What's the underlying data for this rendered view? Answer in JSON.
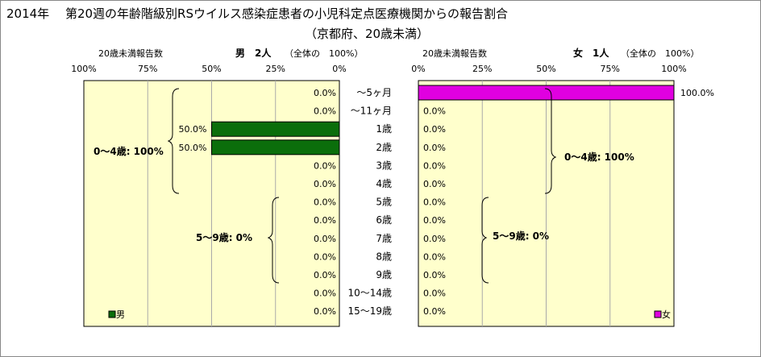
{
  "title": {
    "line1": "2014年　 第20週の年齢階級別RSウイルス感染症患者の小児科定点医療機関からの報告割合",
    "line2": "（京都府、20歳未満）"
  },
  "colors": {
    "male_bar": "#0b6e0b",
    "female_bar": "#e000e0",
    "panel_fill": "#ffffcc",
    "grid": "#aaaaaa"
  },
  "chart_data": [
    {
      "type": "bar",
      "orientation": "horizontal",
      "direction": "right-to-left",
      "axis_title": "20歳未満報告数",
      "header": "男　2人",
      "header_note": "（全体の　100%）",
      "xlim": [
        0,
        100
      ],
      "xticks": [
        "100%",
        "75%",
        "50%",
        "25%",
        "0%"
      ],
      "categories": [
        "～5ヶ月",
        "～11ヶ月",
        "1歳",
        "2歳",
        "3歳",
        "4歳",
        "5歳",
        "6歳",
        "7歳",
        "8歳",
        "9歳",
        "10～14歳",
        "15～19歳"
      ],
      "series": [
        {
          "name": "男",
          "values": [
            0,
            0,
            50,
            50,
            0,
            0,
            0,
            0,
            0,
            0,
            0,
            0,
            0
          ]
        }
      ],
      "value_labels": [
        "0.0%",
        "0.0%",
        "50.0%",
        "50.0%",
        "0.0%",
        "0.0%",
        "0.0%",
        "0.0%",
        "0.0%",
        "0.0%",
        "0.0%",
        "0.0%",
        "0.0%"
      ],
      "annotations": [
        "0～4歳: 100%",
        "5～9歳: 0%"
      ],
      "legend": "bottom-left",
      "grid": true
    },
    {
      "type": "bar",
      "orientation": "horizontal",
      "direction": "left-to-right",
      "axis_title": "20歳未満報告数",
      "header": "女　1人",
      "header_note": "（全体の　100%）",
      "xlim": [
        0,
        100
      ],
      "xticks": [
        "0%",
        "25%",
        "50%",
        "75%",
        "100%"
      ],
      "categories": [
        "～5ヶ月",
        "～11ヶ月",
        "1歳",
        "2歳",
        "3歳",
        "4歳",
        "5歳",
        "6歳",
        "7歳",
        "8歳",
        "9歳",
        "10～14歳",
        "15～19歳"
      ],
      "series": [
        {
          "name": "女",
          "values": [
            100,
            0,
            0,
            0,
            0,
            0,
            0,
            0,
            0,
            0,
            0,
            0,
            0
          ]
        }
      ],
      "value_labels": [
        "100.0%",
        "0.0%",
        "0.0%",
        "0.0%",
        "0.0%",
        "0.0%",
        "0.0%",
        "0.0%",
        "0.0%",
        "0.0%",
        "0.0%",
        "0.0%",
        "0.0%"
      ],
      "annotations": [
        "0～4歳: 100%",
        "5～9歳: 0%"
      ],
      "legend": "bottom-right",
      "grid": true
    }
  ]
}
